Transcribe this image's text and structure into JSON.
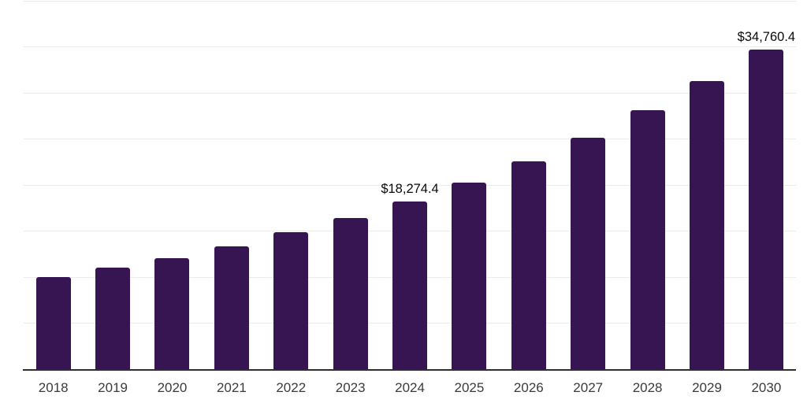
{
  "chart_data": {
    "type": "bar",
    "title": "",
    "xlabel": "",
    "ylabel": "",
    "categories": [
      "2018",
      "2019",
      "2020",
      "2021",
      "2022",
      "2023",
      "2024",
      "2025",
      "2026",
      "2027",
      "2028",
      "2029",
      "2030"
    ],
    "values": [
      10050,
      11070,
      12150,
      13380,
      14900,
      16440,
      18274.4,
      20350,
      22650,
      25200,
      28150,
      31300,
      34760.4
    ],
    "value_labels": {
      "2024": "$18,274.4",
      "2030": "$34,760.4"
    },
    "ylim": [
      0,
      40000
    ],
    "grid_step": 5000,
    "grid": "horizontal",
    "y_axis_tick_labels": "none",
    "legend": "none",
    "colors": {
      "background": "#ffffff",
      "bar": "#371552",
      "gridline": "#ebebeb",
      "axis_line": "#2e2e2e",
      "tick_label": "#3b3b3b",
      "data_label": "#0a0a0a"
    }
  }
}
